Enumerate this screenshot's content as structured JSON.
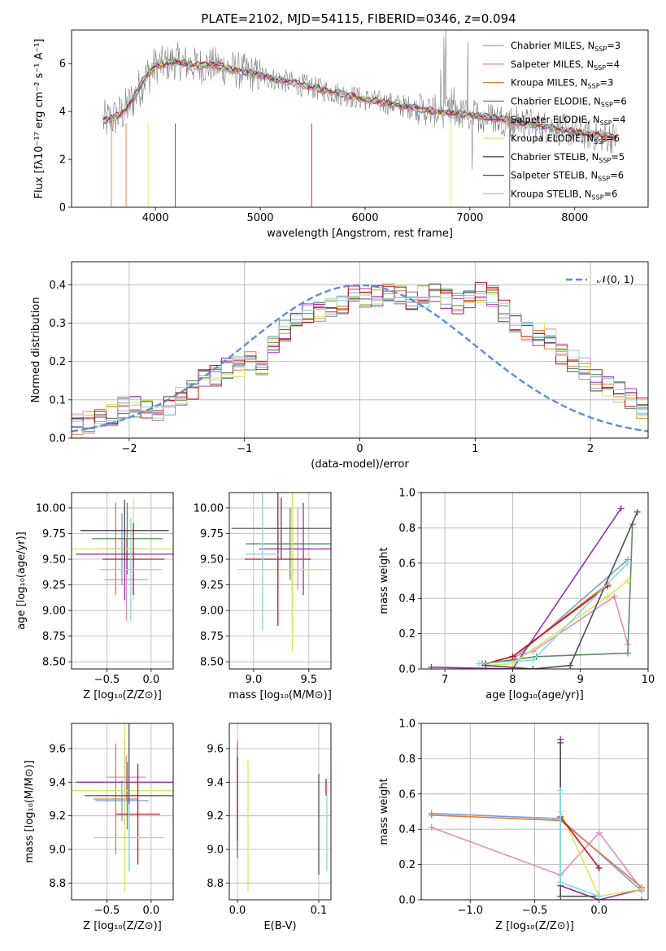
{
  "figure": {
    "title": "PLATE=2102, MJD=54115, FIBERID=0346, z=0.094"
  },
  "colors": {
    "chabrier_miles": "#7b9fd4",
    "salpeter_miles": "#e68ac0",
    "kroupa_miles": "#e07b39",
    "chabrier_elodie": "#5a8f5a",
    "salpeter_elodie": "#9a2fb0",
    "kroupa_elodie": "#d6ea5a",
    "chabrier_stelib": "#505050",
    "salpeter_stelib": "#c0141e",
    "kroupa_stelib": "#8ad8dc",
    "data_gray": "#808080",
    "gaussian": "#5b8ed6"
  },
  "chart_data": [
    {
      "id": "spectrum",
      "type": "line",
      "xlabel": "wavelength [Angstrom, rest frame]",
      "ylabel": "Flux [fλ10⁻¹⁷ erg cm⁻² s⁻¹ A⁻¹]",
      "xlim": [
        3200,
        8700
      ],
      "ylim": [
        0,
        7.4
      ],
      "xticks": [
        "4000",
        "5000",
        "6000",
        "7000",
        "8000"
      ],
      "yticks": [
        "0",
        "2",
        "4",
        "6"
      ],
      "grid": false,
      "legend": "top-right",
      "continuum": {
        "x": [
          3500,
          3600,
          3700,
          3800,
          3900,
          4000,
          4100,
          4200,
          4300,
          4400,
          4500,
          4600,
          4700,
          4800,
          4900,
          5000,
          5200,
          5400,
          5600,
          5800,
          6000,
          6200,
          6400,
          6600,
          6800,
          7000,
          7200,
          7400,
          7600,
          7800,
          8000,
          8200,
          8400
        ],
        "y": [
          3.6,
          3.7,
          4.0,
          4.6,
          5.4,
          5.9,
          6.0,
          6.1,
          6.0,
          5.9,
          5.95,
          5.9,
          5.8,
          5.7,
          5.6,
          5.5,
          5.3,
          5.1,
          4.9,
          4.7,
          4.5,
          4.35,
          4.2,
          4.05,
          3.95,
          3.85,
          3.75,
          3.6,
          3.45,
          3.3,
          3.15,
          3.0,
          2.9
        ]
      },
      "series": [
        {
          "name": "Chabrier MILES, N_SSP=3",
          "label_main": "Chabrier MILES, N",
          "label_sub": "SSP",
          "label_tail": "=3"
        },
        {
          "name": "Salpeter MILES, N_SSP=4",
          "label_main": "Salpeter MILES, N",
          "label_sub": "SSP",
          "label_tail": "=4"
        },
        {
          "name": "Kroupa MILES, N_SSP=3",
          "label_main": "Kroupa MILES, N",
          "label_sub": "SSP",
          "label_tail": "=3"
        },
        {
          "name": "Chabrier ELODIE, N_SSP=6",
          "label_main": "Chabrier ELODIE, N",
          "label_sub": "SSP",
          "label_tail": "=6"
        },
        {
          "name": "Salpeter ELODIE, N_SSP=4",
          "label_main": "Salpeter ELODIE, N",
          "label_sub": "SSP",
          "label_tail": "=4"
        },
        {
          "name": "Kroupa ELODIE, N_SSP=6",
          "label_main": "Kroupa ELODIE, N",
          "label_sub": "SSP",
          "label_tail": "=6"
        },
        {
          "name": "Chabrier STELIB, N_SSP=5",
          "label_main": "Chabrier STELIB, N",
          "label_sub": "SSP",
          "label_tail": "=5"
        },
        {
          "name": "Salpeter STELIB, N_SSP=6",
          "label_main": "Salpeter STELIB, N",
          "label_sub": "SSP",
          "label_tail": "=6"
        },
        {
          "name": "Kroupa STELIB, N_SSP=6",
          "label_main": "Kroupa STELIB, N",
          "label_sub": "SSP",
          "label_tail": "=6"
        }
      ]
    },
    {
      "id": "residuals",
      "type": "bar",
      "xlabel": "(data-model)/error",
      "ylabel": "Normed distribution",
      "xlim": [
        -2.5,
        2.5
      ],
      "ylim": [
        0,
        0.46
      ],
      "xticks": [
        "−2",
        "−1",
        "0",
        "1",
        "2"
      ],
      "yticks": [
        "0.0",
        "0.1",
        "0.2",
        "0.3",
        "0.4"
      ],
      "grid": true,
      "legend": "top-right",
      "gaussian_label": "𝒩(0, 1)",
      "bin_width": 0.1,
      "bin_start": -2.5,
      "base_hist": [
        0.04,
        0.04,
        0.05,
        0.06,
        0.08,
        0.08,
        0.07,
        0.06,
        0.08,
        0.11,
        0.13,
        0.15,
        0.16,
        0.18,
        0.19,
        0.2,
        0.19,
        0.25,
        0.28,
        0.3,
        0.32,
        0.33,
        0.34,
        0.35,
        0.37,
        0.36,
        0.37,
        0.38,
        0.37,
        0.36,
        0.37,
        0.38,
        0.36,
        0.35,
        0.37,
        0.38,
        0.37,
        0.33,
        0.3,
        0.28,
        0.27,
        0.26,
        0.22,
        0.2,
        0.18,
        0.15,
        0.13,
        0.12,
        0.1,
        0.08,
        0.07
      ]
    },
    {
      "id": "age_vs_Z",
      "type": "scatter",
      "xlabel": "Z [log₁₀(Z/Z⊙)]",
      "ylabel": "age  [log₁₀(age/yr)]",
      "xlim": [
        -0.9,
        0.25
      ],
      "ylim": [
        8.43,
        10.15
      ],
      "xticks": [
        "−0.5",
        "0.0"
      ],
      "yticks": [
        "8.50",
        "8.75",
        "9.00",
        "9.25",
        "9.50",
        "9.75",
        "10.00"
      ],
      "grid": true,
      "points": [
        {
          "x": -0.33,
          "y": 9.6,
          "xerr": 0.3,
          "yerr": 0.35
        },
        {
          "x": -0.28,
          "y": 9.3,
          "xerr": 0.25,
          "yerr": 0.4
        },
        {
          "x": -0.4,
          "y": 9.6,
          "xerr": 0.25,
          "yerr": 0.45
        },
        {
          "x": -0.27,
          "y": 9.7,
          "xerr": 0.4,
          "yerr": 0.35
        },
        {
          "x": -0.3,
          "y": 9.55,
          "xerr": 0.55,
          "yerr": 0.45
        },
        {
          "x": -0.2,
          "y": 9.6,
          "xerr": 0.7,
          "yerr": 0.5
        },
        {
          "x": -0.3,
          "y": 9.78,
          "xerr": 0.5,
          "yerr": 0.3
        },
        {
          "x": -0.2,
          "y": 9.5,
          "xerr": 0.35,
          "yerr": 0.35
        },
        {
          "x": -0.23,
          "y": 9.4,
          "xerr": 0.35,
          "yerr": 0.5
        }
      ]
    },
    {
      "id": "age_vs_mass",
      "type": "scatter",
      "xlabel": "mass [log₁₀(M/M⊙)]",
      "xlim": [
        8.78,
        9.7
      ],
      "ylim": [
        8.43,
        10.15
      ],
      "xticks": [
        "9.0",
        "9.5"
      ],
      "yticks": [
        "8.50",
        "8.75",
        "9.00",
        "9.25",
        "9.50",
        "9.75",
        "10.00"
      ],
      "grid": true,
      "points": [
        {
          "x": 9.35,
          "y": 9.6,
          "xerr": 0.2,
          "yerr": 0.4
        },
        {
          "x": 9.4,
          "y": 9.6,
          "xerr": 0.3,
          "yerr": 0.4
        },
        {
          "x": 9.35,
          "y": 9.4,
          "xerr": 0.3,
          "yerr": 0.6
        },
        {
          "x": 9.33,
          "y": 9.65,
          "xerr": 0.4,
          "yerr": 0.35
        },
        {
          "x": 9.45,
          "y": 9.6,
          "xerr": 0.4,
          "yerr": 0.45
        },
        {
          "x": 9.35,
          "y": 9.4,
          "xerr": 0.5,
          "yerr": 0.8
        },
        {
          "x": 9.25,
          "y": 9.8,
          "xerr": 0.45,
          "yerr": 0.3
        },
        {
          "x": 9.22,
          "y": 9.5,
          "xerr": 0.3,
          "yerr": 0.65
        },
        {
          "x": 9.08,
          "y": 9.55,
          "xerr": 0.15,
          "yerr": 0.75
        }
      ]
    },
    {
      "id": "massweight_vs_age",
      "type": "line",
      "xlabel": "age  [log₁₀(age/yr)]",
      "ylabel": "mass weight",
      "xlim": [
        6.65,
        10.0
      ],
      "ylim": [
        0.0,
        1.0
      ],
      "xticks": [
        "7",
        "8",
        "9",
        "10"
      ],
      "yticks": [
        "0.0",
        "0.2",
        "0.4",
        "0.6",
        "0.8",
        "1.0"
      ],
      "grid": true,
      "series": [
        {
          "x": [
            7.6,
            8.0,
            9.7
          ],
          "y": [
            0.03,
            0.05,
            0.62
          ]
        },
        {
          "x": [
            7.6,
            8.3,
            9.5,
            9.7
          ],
          "y": [
            0.03,
            0.1,
            0.41,
            0.14
          ]
        },
        {
          "x": [
            8.0,
            9.4
          ],
          "y": [
            0.07,
            0.48
          ]
        },
        {
          "x": [
            7.55,
            8.35,
            9.7,
            9.77
          ],
          "y": [
            0.03,
            0.07,
            0.09,
            0.82
          ]
        },
        {
          "x": [
            6.8,
            8.0,
            9.6
          ],
          "y": [
            0.01,
            0.0,
            0.91
          ]
        },
        {
          "x": [
            7.6,
            8.0,
            9.4,
            9.7
          ],
          "y": [
            0.02,
            0.03,
            0.41,
            0.5
          ]
        },
        {
          "x": [
            7.6,
            8.3,
            8.85,
            9.84
          ],
          "y": [
            0.02,
            0.0,
            0.02,
            0.89
          ]
        },
        {
          "x": [
            7.6,
            8.0,
            9.4
          ],
          "y": [
            0.03,
            0.07,
            0.47
          ]
        },
        {
          "x": [
            7.5,
            8.3,
            9.7
          ],
          "y": [
            0.03,
            0.05,
            0.6
          ]
        }
      ]
    },
    {
      "id": "mass_vs_Z",
      "type": "scatter",
      "xlabel": "Z [log₁₀(Z/Z⊙)]",
      "ylabel": "mass [log₁₀(M/M⊙)]",
      "xlim": [
        -0.9,
        0.25
      ],
      "ylim": [
        8.7,
        9.75
      ],
      "xticks": [
        "−0.5",
        "0.0"
      ],
      "yticks": [
        "8.8",
        "9.0",
        "9.2",
        "9.4",
        "9.6"
      ],
      "grid": true,
      "points": [
        {
          "x": -0.33,
          "y": 9.29,
          "xerr": 0.3,
          "yerr": 0.12
        },
        {
          "x": -0.28,
          "y": 9.43,
          "xerr": 0.22,
          "yerr": 0.13
        },
        {
          "x": -0.4,
          "y": 9.3,
          "xerr": 0.25,
          "yerr": 0.33
        },
        {
          "x": -0.27,
          "y": 9.32,
          "xerr": 0.35,
          "yerr": 0.2
        },
        {
          "x": -0.3,
          "y": 9.4,
          "xerr": 0.55,
          "yerr": 0.25
        },
        {
          "x": -0.3,
          "y": 9.35,
          "xerr": 0.65,
          "yerr": 0.6
        },
        {
          "x": -0.25,
          "y": 9.32,
          "xerr": 0.5,
          "yerr": 0.45
        },
        {
          "x": -0.15,
          "y": 9.21,
          "xerr": 0.25,
          "yerr": 0.3
        },
        {
          "x": -0.25,
          "y": 9.07,
          "xerr": 0.4,
          "yerr": 0.2
        }
      ]
    },
    {
      "id": "mass_vs_ebv",
      "type": "scatter",
      "xlabel": "E(B-V)",
      "xlim": [
        -0.01,
        0.115
      ],
      "ylim": [
        8.7,
        9.75
      ],
      "xticks": [
        "0.0",
        "0.1"
      ],
      "yticks": [
        "8.8",
        "9.0",
        "9.2",
        "9.4",
        "9.6"
      ],
      "grid": true,
      "points": [
        {
          "x": 0.0,
          "y": 9.3,
          "xerr": 0.0,
          "yerr": 0.35
        },
        {
          "x": 0.0,
          "y": 9.4,
          "xerr": 0.0,
          "yerr": 0.25
        },
        {
          "x": 0.0,
          "y": 9.35,
          "xerr": 0.0,
          "yerr": 0.28
        },
        {
          "x": 0.0,
          "y": 9.25,
          "xerr": 0.0,
          "yerr": 0.3
        },
        {
          "x": 0.0,
          "y": 9.3,
          "xerr": 0.0,
          "yerr": 0.25
        },
        {
          "x": 0.013,
          "y": 9.14,
          "xerr": 0.0,
          "yerr": 0.39
        },
        {
          "x": 0.1,
          "y": 9.15,
          "xerr": 0.0,
          "yerr": 0.3
        },
        {
          "x": 0.109,
          "y": 9.37,
          "xerr": 0.0,
          "yerr": 0.05
        },
        {
          "x": 0.11,
          "y": 9.1,
          "xerr": 0.0,
          "yerr": 0.23
        }
      ]
    },
    {
      "id": "massweight_vs_Z",
      "type": "line",
      "xlabel": "Z [log₁₀(Z/Z⊙)]",
      "ylabel": "mass weight",
      "xlim": [
        -1.38,
        0.38
      ],
      "ylim": [
        0.0,
        1.0
      ],
      "xticks": [
        "−1.0",
        "−0.5",
        "0.0"
      ],
      "yticks": [
        "0.0",
        "0.2",
        "0.4",
        "0.6",
        "0.8",
        "1.0"
      ],
      "grid": true,
      "series": [
        {
          "x": [
            -1.3,
            -0.3,
            0.33
          ],
          "y": [
            0.49,
            0.46,
            0.05
          ]
        },
        {
          "x": [
            -1.3,
            -0.3,
            0.0,
            0.33
          ],
          "y": [
            0.41,
            0.14,
            0.38,
            0.06
          ]
        },
        {
          "x": [
            -1.3,
            -0.3,
            0.33
          ],
          "y": [
            0.48,
            0.45,
            0.07
          ]
        },
        {
          "x": [
            -0.3,
            0.0,
            0.33
          ],
          "y": [
            0.08,
            0.0,
            0.0
          ]
        },
        {
          "x": [
            -0.3,
            -0.3,
            0.0,
            0.33
          ],
          "y": [
            0.91,
            0.08,
            0.0,
            0.06
          ]
        },
        {
          "x": [
            -0.3,
            0.0,
            0.33
          ],
          "y": [
            0.5,
            0.02,
            0.06
          ]
        },
        {
          "x": [
            -0.3,
            -0.3,
            0.0
          ],
          "y": [
            0.89,
            0.02,
            0.02
          ]
        },
        {
          "x": [
            -0.3,
            0.0
          ],
          "y": [
            0.47,
            0.18
          ]
        },
        {
          "x": [
            -0.3,
            -0.3,
            0.0
          ],
          "y": [
            0.62,
            0.1,
            0.02
          ]
        }
      ]
    }
  ]
}
